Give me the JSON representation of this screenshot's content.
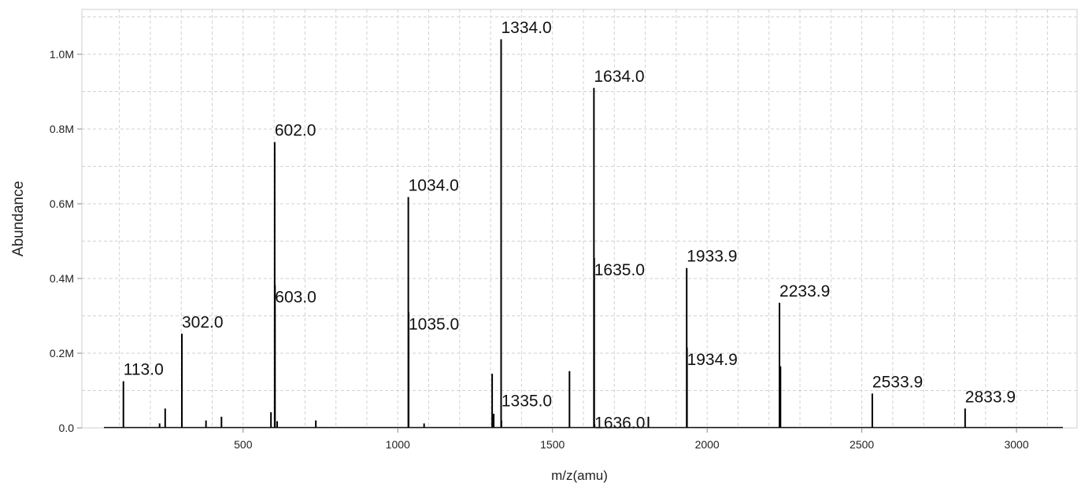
{
  "chart_data": {
    "type": "bar",
    "xlabel": "m/z(amu)",
    "ylabel": "Abundance",
    "xlim": [
      50,
      3150
    ],
    "ylim": [
      0,
      1120000
    ],
    "grid": true,
    "x_ticks": [
      500,
      1000,
      1500,
      2000,
      2500,
      3000
    ],
    "x_tick_labels": [
      "500",
      "1000",
      "1500",
      "2000",
      "2500",
      "3000"
    ],
    "y_ticks": [
      0,
      200000,
      400000,
      600000,
      800000,
      1000000
    ],
    "y_tick_labels": [
      "0.0",
      "0.2M",
      "0.4M",
      "0.6M",
      "0.8M",
      "1.0M"
    ],
    "peaks": [
      {
        "mz": 113.0,
        "abundance": 125000,
        "label": "113.0"
      },
      {
        "mz": 230,
        "abundance": 12000
      },
      {
        "mz": 248,
        "abundance": 52000
      },
      {
        "mz": 302.0,
        "abundance": 252000,
        "label": "302.0"
      },
      {
        "mz": 380,
        "abundance": 20000
      },
      {
        "mz": 430,
        "abundance": 30000
      },
      {
        "mz": 590,
        "abundance": 42000
      },
      {
        "mz": 602.0,
        "abundance": 765000,
        "label": "602.0"
      },
      {
        "mz": 603.0,
        "abundance": 382000,
        "label": "603.0"
      },
      {
        "mz": 610,
        "abundance": 18000
      },
      {
        "mz": 735,
        "abundance": 20000
      },
      {
        "mz": 1034.0,
        "abundance": 618000,
        "label": "1034.0"
      },
      {
        "mz": 1035.0,
        "abundance": 310000,
        "label": "1035.0"
      },
      {
        "mz": 1085,
        "abundance": 12000
      },
      {
        "mz": 1305,
        "abundance": 145000
      },
      {
        "mz": 1310,
        "abundance": 38000
      },
      {
        "mz": 1334.0,
        "abundance": 1040000,
        "label": "1334.0"
      },
      {
        "mz": 1335.0,
        "abundance": 20000,
        "label": "1335.0"
      },
      {
        "mz": 1555,
        "abundance": 152000
      },
      {
        "mz": 1634.0,
        "abundance": 910000,
        "label": "1634.0"
      },
      {
        "mz": 1635.0,
        "abundance": 455000,
        "label": "1635.0"
      },
      {
        "mz": 1636.0,
        "abundance": 10000,
        "label": "1636.0"
      },
      {
        "mz": 1810,
        "abundance": 30000
      },
      {
        "mz": 1933.9,
        "abundance": 428000,
        "label": "1933.9"
      },
      {
        "mz": 1934.9,
        "abundance": 215000,
        "label": "1934.9"
      },
      {
        "mz": 2233.9,
        "abundance": 335000,
        "label": "2233.9"
      },
      {
        "mz": 2237,
        "abundance": 165000
      },
      {
        "mz": 2533.9,
        "abundance": 92000,
        "label": "2533.9"
      },
      {
        "mz": 2833.9,
        "abundance": 52000,
        "label": "2833.9"
      }
    ]
  }
}
